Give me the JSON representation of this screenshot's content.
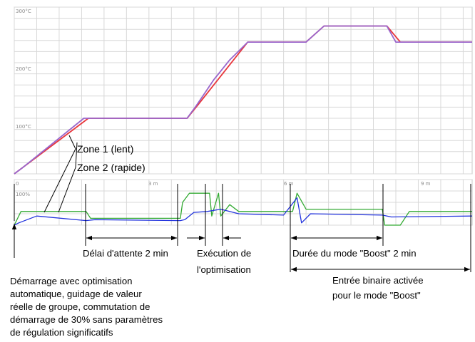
{
  "chart_data": [
    {
      "type": "line",
      "title": "",
      "xlabel": "",
      "ylabel": "",
      "unit_x": "min",
      "xlim": [
        0,
        10.2
      ],
      "ylim": [
        0,
        300
      ],
      "y_tick_labels": [
        "300°C",
        "200°C",
        "100°C"
      ],
      "y_tick_values": [
        300,
        200,
        100
      ],
      "grid": true,
      "series": [
        {
          "name": "Zone 1 (lent)",
          "color": "#e8363c",
          "x": [
            0,
            1.65,
            2.0,
            3.85,
            4.1,
            5.2,
            6.5,
            6.9,
            8.3,
            8.6,
            10.2
          ],
          "y": [
            0,
            100,
            100,
            100,
            125,
            237,
            237,
            266,
            266,
            237,
            237
          ]
        },
        {
          "name": "Zone 2 (rapide)",
          "color": "#9966cc",
          "x": [
            0,
            0.2,
            1.55,
            1.75,
            3.85,
            4.05,
            4.45,
            4.8,
            5.2,
            6.5,
            6.9,
            8.3,
            8.5,
            10.2
          ],
          "y": [
            0,
            12,
            100,
            100,
            100,
            122,
            170,
            205,
            237,
            237,
            266,
            266,
            237,
            237
          ]
        }
      ]
    },
    {
      "type": "line",
      "title": "",
      "xlabel": "",
      "ylabel": "",
      "unit_x": "min",
      "xlim": [
        0,
        10.2
      ],
      "ylim": [
        0,
        100
      ],
      "x_tick_labels": [
        "0",
        "3 m",
        "6 m",
        "9 m"
      ],
      "x_tick_values": [
        0,
        3,
        6,
        9
      ],
      "y_tick_labels": [
        "100%"
      ],
      "y_tick_values": [
        100
      ],
      "grid": true,
      "series": [
        {
          "name": "Zone 1 (lent)",
          "color": "#33aa33",
          "x": [
            0,
            0.15,
            1.55,
            1.6,
            1.7,
            3.7,
            3.75,
            3.9,
            4.35,
            4.4,
            4.55,
            4.6,
            4.8,
            5.0,
            6.2,
            6.3,
            6.5,
            8.2,
            8.25,
            8.6,
            8.8,
            10.2
          ],
          "y": [
            0,
            30,
            30,
            30,
            15,
            15,
            50,
            70,
            70,
            20,
            70,
            20,
            45,
            30,
            30,
            70,
            35,
            35,
            0,
            0,
            30,
            30
          ]
        },
        {
          "name": "Zone 2 (rapide)",
          "color": "#2233dd",
          "x": [
            0,
            0.1,
            0.5,
            1.6,
            1.8,
            3.7,
            3.8,
            4.0,
            4.3,
            4.6,
            5.0,
            6.0,
            6.3,
            6.4,
            6.6,
            8.2,
            8.4,
            10.2
          ],
          "y": [
            0,
            5,
            20,
            10,
            12,
            10,
            12,
            28,
            30,
            35,
            25,
            22,
            60,
            5,
            25,
            22,
            18,
            20
          ]
        }
      ]
    }
  ],
  "annotations": {
    "zone1": "Zone 1 (lent)",
    "zone2": "Zone 2 (rapide)",
    "delai": "Délai d'attente 2 min",
    "execution_1": "Exécution de",
    "execution_2": "l'optimisation",
    "duree": "Durée du mode \"Boost\" 2 min",
    "entree_1": "Entrée binaire activée",
    "entree_2": "pour le mode \"Boost\"",
    "demarrage_1": "Démarrage avec optimisation",
    "demarrage_2": "automatique, guidage de valeur",
    "demarrage_3": "réelle de groupe, commutation de",
    "demarrage_4": "démarrage de 30% sans paramètres",
    "demarrage_5": "de régulation significatifs"
  }
}
